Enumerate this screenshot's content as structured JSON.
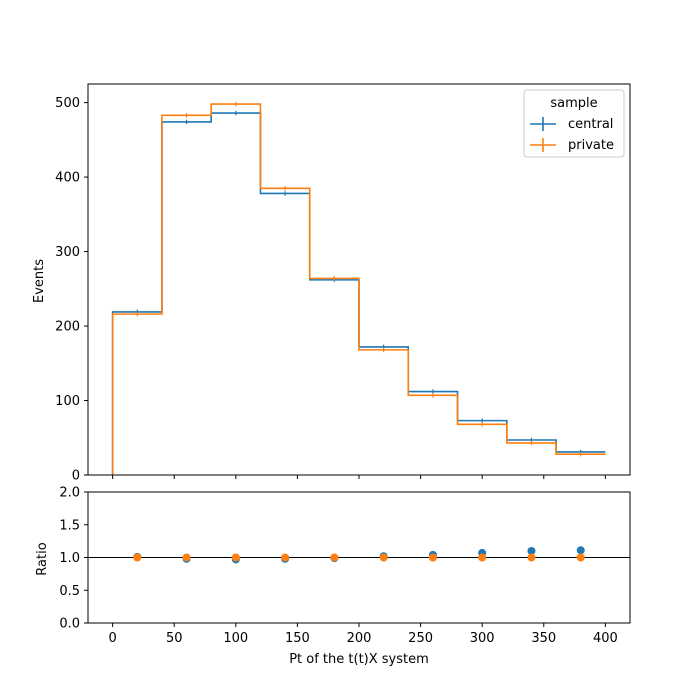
{
  "chart_data": [
    {
      "type": "step",
      "xlabel": "",
      "ylabel": "Events",
      "xlim": [
        -20,
        420
      ],
      "ylim": [
        0,
        525
      ],
      "xticks": [
        0,
        50,
        100,
        150,
        200,
        250,
        300,
        350,
        400
      ],
      "yticks": [
        0,
        100,
        200,
        300,
        400,
        500
      ],
      "bin_edges": [
        0,
        40,
        80,
        120,
        160,
        200,
        240,
        280,
        320,
        360,
        400
      ],
      "legend": {
        "title": "sample",
        "placement": "top-right"
      },
      "series": [
        {
          "name": "central",
          "color": "#1f77b4",
          "values": [
            219,
            474,
            486,
            378,
            262,
            172,
            112,
            73,
            47,
            31
          ],
          "errors": [
            3,
            3,
            3,
            3,
            3,
            3,
            3,
            3,
            3,
            3
          ]
        },
        {
          "name": "private",
          "color": "#ff7f0e",
          "values": [
            216,
            483,
            498,
            385,
            264,
            168,
            107,
            68,
            43,
            28
          ],
          "errors": [
            3,
            3,
            3,
            3,
            3,
            3,
            3,
            3,
            3,
            3
          ]
        }
      ]
    },
    {
      "type": "scatter",
      "xlabel": "Pt of the t(t)X system",
      "ylabel": "Ratio",
      "xlim": [
        -20,
        420
      ],
      "ylim": [
        0,
        2
      ],
      "xticks": [
        0,
        50,
        100,
        150,
        200,
        250,
        300,
        350,
        400
      ],
      "yticks": [
        0.0,
        0.5,
        1.0,
        1.5,
        2.0
      ],
      "reference_line": 1.0,
      "x": [
        20,
        60,
        100,
        140,
        180,
        220,
        260,
        300,
        340,
        380
      ],
      "series": [
        {
          "name": "central",
          "color": "#1f77b4",
          "values": [
            1.01,
            0.98,
            0.97,
            0.98,
            0.99,
            1.02,
            1.04,
            1.07,
            1.1,
            1.11
          ]
        },
        {
          "name": "private",
          "color": "#ff7f0e",
          "values": [
            1.0,
            1.0,
            1.0,
            1.0,
            1.0,
            1.0,
            1.0,
            1.0,
            1.0,
            1.0
          ]
        }
      ]
    }
  ]
}
